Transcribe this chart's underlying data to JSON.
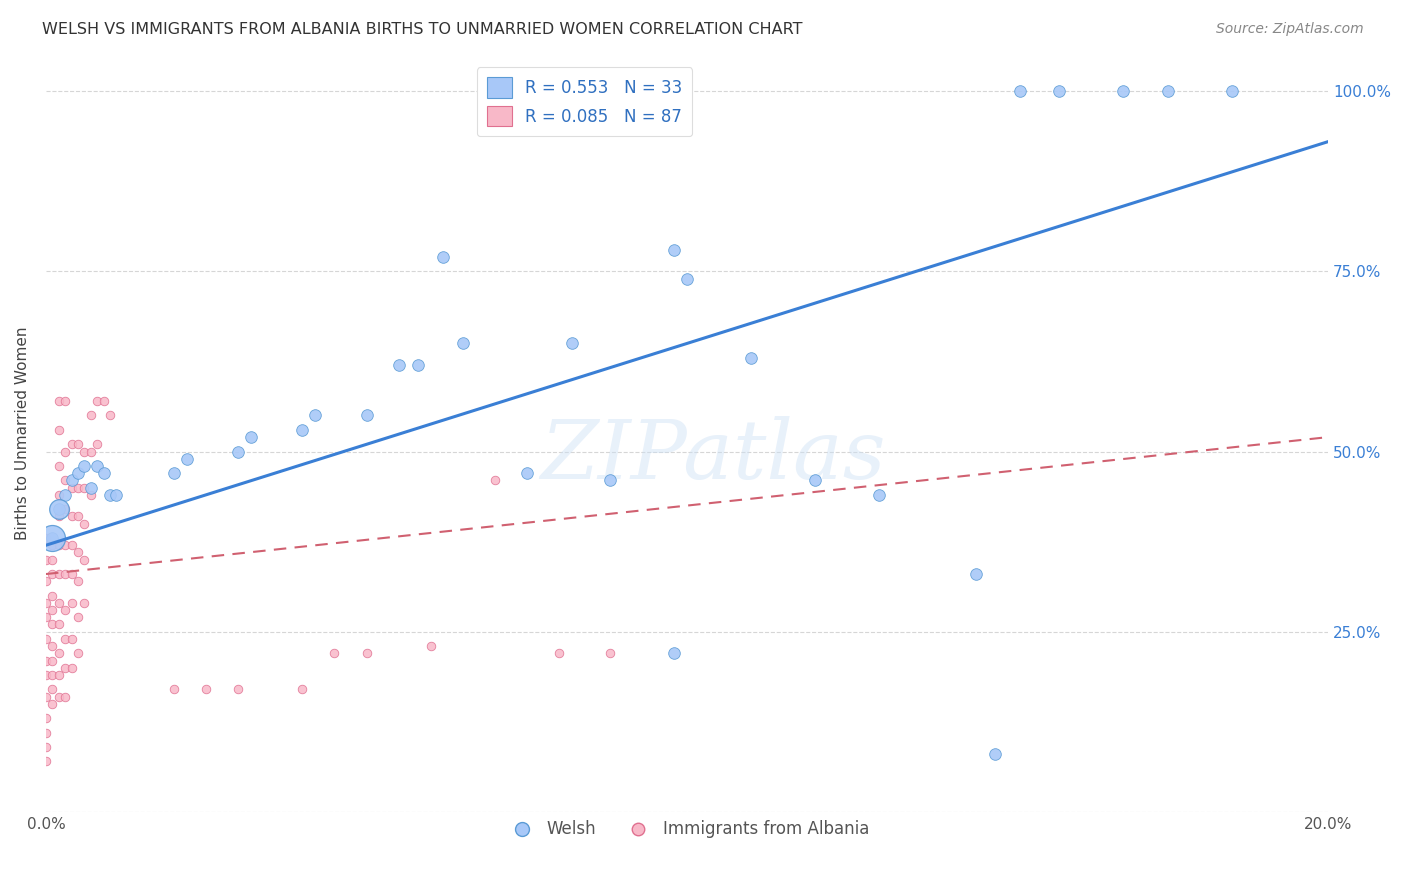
{
  "title": "WELSH VS IMMIGRANTS FROM ALBANIA BIRTHS TO UNMARRIED WOMEN CORRELATION CHART",
  "source": "Source: ZipAtlas.com",
  "ylabel": "Births to Unmarried Women",
  "watermark": "ZIPatlas",
  "xlim": [
    0.0,
    0.2
  ],
  "ylim": [
    0.0,
    1.05
  ],
  "xtick_positions": [
    0.0,
    0.04,
    0.08,
    0.12,
    0.16,
    0.2
  ],
  "xtick_labels": [
    "0.0%",
    "",
    "",
    "",
    "",
    "20.0%"
  ],
  "ytick_positions": [
    0.0,
    0.25,
    0.5,
    0.75,
    1.0
  ],
  "ytick_labels": [
    "",
    "25.0%",
    "50.0%",
    "75.0%",
    "100.0%"
  ],
  "welsh_color": "#a8c8f8",
  "welsh_edge": "#5b9bd5",
  "albania_color": "#f8b8c8",
  "albania_edge": "#e07090",
  "trendline_welsh_color": "#3a7fd5",
  "trendline_albania_color": "#d06070",
  "legend_welsh_label": "R = 0.553   N = 33",
  "legend_albania_label": "R = 0.085   N = 87",
  "legend_text_color": "#3070c0",
  "welsh_trendline": [
    [
      0.0,
      0.37
    ],
    [
      0.2,
      0.93
    ]
  ],
  "albania_trendline": [
    [
      0.0,
      0.33
    ],
    [
      0.2,
      0.52
    ]
  ],
  "welsh_points": [
    [
      0.001,
      0.38
    ],
    [
      0.002,
      0.42
    ],
    [
      0.003,
      0.44
    ],
    [
      0.004,
      0.46
    ],
    [
      0.005,
      0.47
    ],
    [
      0.006,
      0.48
    ],
    [
      0.007,
      0.45
    ],
    [
      0.008,
      0.48
    ],
    [
      0.009,
      0.47
    ],
    [
      0.01,
      0.44
    ],
    [
      0.011,
      0.44
    ],
    [
      0.02,
      0.47
    ],
    [
      0.022,
      0.49
    ],
    [
      0.03,
      0.5
    ],
    [
      0.032,
      0.52
    ],
    [
      0.04,
      0.53
    ],
    [
      0.042,
      0.55
    ],
    [
      0.05,
      0.55
    ],
    [
      0.055,
      0.62
    ],
    [
      0.058,
      0.62
    ],
    [
      0.065,
      0.65
    ],
    [
      0.075,
      0.47
    ],
    [
      0.082,
      0.65
    ],
    [
      0.088,
      0.46
    ],
    [
      0.098,
      0.78
    ],
    [
      0.1,
      0.74
    ],
    [
      0.11,
      0.63
    ],
    [
      0.12,
      0.46
    ],
    [
      0.13,
      0.44
    ],
    [
      0.145,
      0.33
    ],
    [
      0.098,
      0.22
    ],
    [
      0.148,
      0.08
    ],
    [
      0.062,
      0.77
    ]
  ],
  "welsh_100_points": [
    [
      0.152,
      1.0
    ],
    [
      0.158,
      1.0
    ],
    [
      0.168,
      1.0
    ],
    [
      0.175,
      1.0
    ],
    [
      0.185,
      1.0
    ]
  ],
  "albania_points": [
    [
      0.001,
      0.37
    ],
    [
      0.001,
      0.35
    ],
    [
      0.001,
      0.33
    ],
    [
      0.001,
      0.3
    ],
    [
      0.001,
      0.28
    ],
    [
      0.001,
      0.26
    ],
    [
      0.001,
      0.23
    ],
    [
      0.001,
      0.21
    ],
    [
      0.001,
      0.19
    ],
    [
      0.001,
      0.17
    ],
    [
      0.001,
      0.15
    ],
    [
      0.002,
      0.57
    ],
    [
      0.002,
      0.53
    ],
    [
      0.002,
      0.48
    ],
    [
      0.002,
      0.44
    ],
    [
      0.002,
      0.41
    ],
    [
      0.002,
      0.37
    ],
    [
      0.002,
      0.33
    ],
    [
      0.002,
      0.29
    ],
    [
      0.002,
      0.26
    ],
    [
      0.002,
      0.22
    ],
    [
      0.002,
      0.19
    ],
    [
      0.002,
      0.16
    ],
    [
      0.003,
      0.57
    ],
    [
      0.003,
      0.5
    ],
    [
      0.003,
      0.46
    ],
    [
      0.003,
      0.42
    ],
    [
      0.003,
      0.37
    ],
    [
      0.003,
      0.33
    ],
    [
      0.003,
      0.28
    ],
    [
      0.003,
      0.24
    ],
    [
      0.003,
      0.2
    ],
    [
      0.003,
      0.16
    ],
    [
      0.004,
      0.51
    ],
    [
      0.004,
      0.45
    ],
    [
      0.004,
      0.41
    ],
    [
      0.004,
      0.37
    ],
    [
      0.004,
      0.33
    ],
    [
      0.004,
      0.29
    ],
    [
      0.004,
      0.24
    ],
    [
      0.004,
      0.2
    ],
    [
      0.005,
      0.51
    ],
    [
      0.005,
      0.45
    ],
    [
      0.005,
      0.41
    ],
    [
      0.005,
      0.36
    ],
    [
      0.005,
      0.32
    ],
    [
      0.005,
      0.27
    ],
    [
      0.005,
      0.22
    ],
    [
      0.006,
      0.5
    ],
    [
      0.006,
      0.45
    ],
    [
      0.006,
      0.4
    ],
    [
      0.006,
      0.35
    ],
    [
      0.006,
      0.29
    ],
    [
      0.007,
      0.55
    ],
    [
      0.007,
      0.5
    ],
    [
      0.007,
      0.44
    ],
    [
      0.008,
      0.57
    ],
    [
      0.008,
      0.51
    ],
    [
      0.009,
      0.57
    ],
    [
      0.01,
      0.55
    ],
    [
      0.02,
      0.17
    ],
    [
      0.025,
      0.17
    ],
    [
      0.03,
      0.17
    ],
    [
      0.04,
      0.17
    ],
    [
      0.045,
      0.22
    ],
    [
      0.05,
      0.22
    ],
    [
      0.06,
      0.23
    ],
    [
      0.07,
      0.46
    ],
    [
      0.08,
      0.22
    ],
    [
      0.088,
      0.22
    ]
  ],
  "albania_low_points": [
    [
      0.0,
      0.32
    ],
    [
      0.0,
      0.29
    ],
    [
      0.0,
      0.27
    ],
    [
      0.0,
      0.24
    ],
    [
      0.0,
      0.21
    ],
    [
      0.0,
      0.19
    ],
    [
      0.0,
      0.16
    ],
    [
      0.0,
      0.13
    ],
    [
      0.0,
      0.11
    ],
    [
      0.0,
      0.09
    ],
    [
      0.0,
      0.07
    ],
    [
      0.0,
      0.38
    ],
    [
      0.0,
      0.35
    ]
  ],
  "welsh_large_points": [
    [
      0.001,
      0.38,
      350
    ],
    [
      0.002,
      0.42,
      200
    ]
  ],
  "welsh_marker_size": 70,
  "albania_marker_size": 38
}
